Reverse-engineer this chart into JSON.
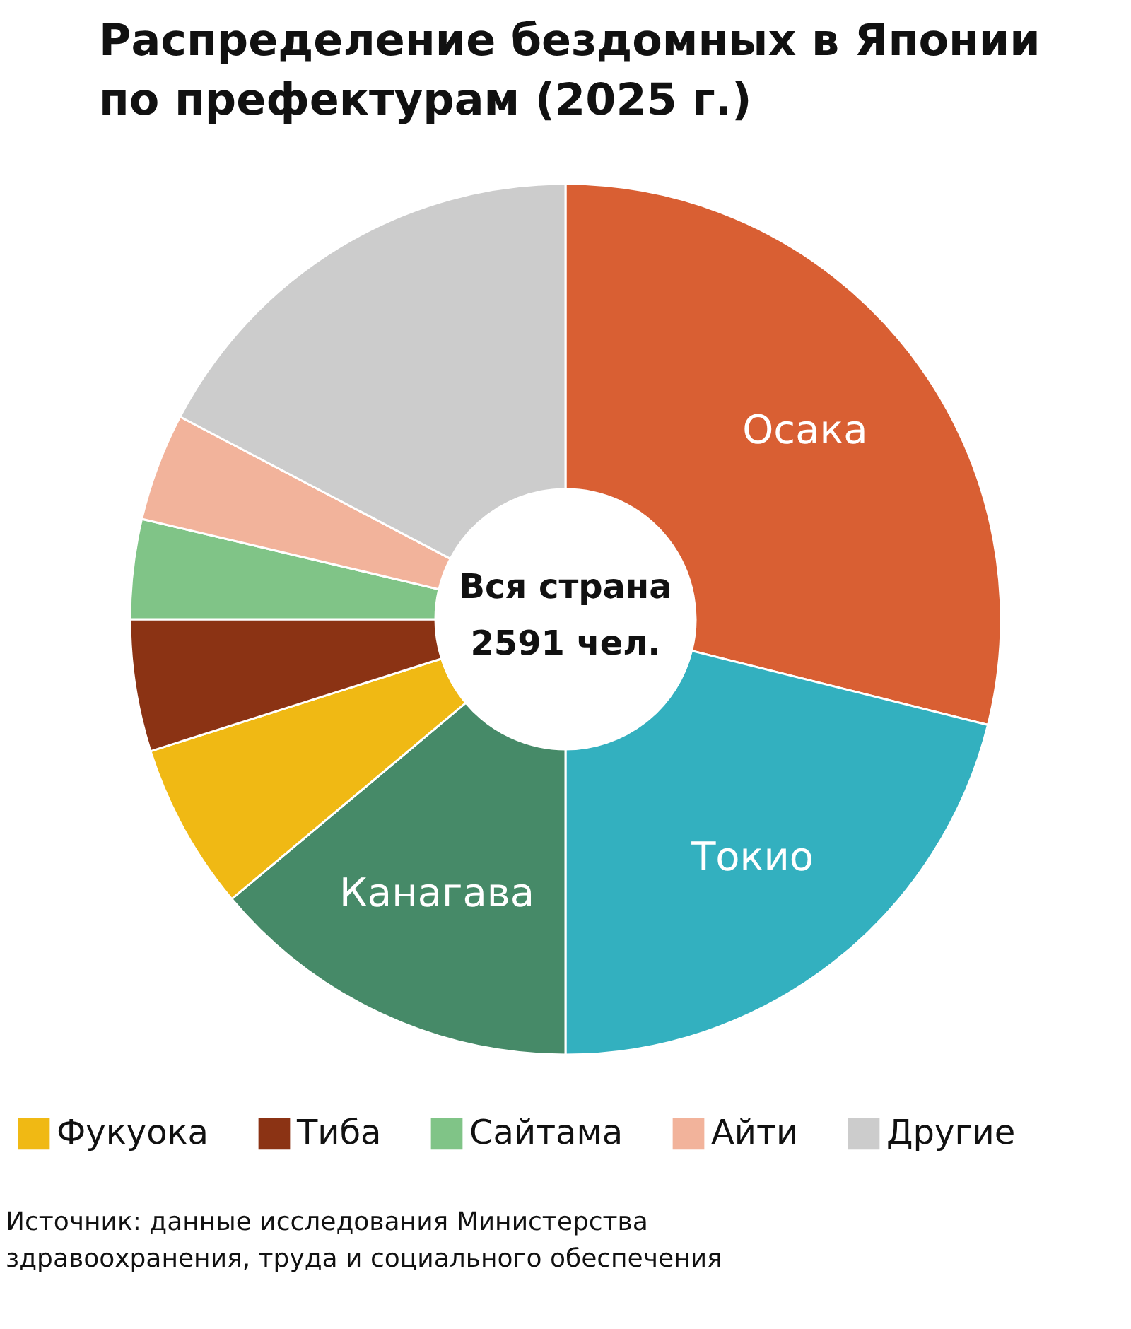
{
  "chart_data": {
    "type": "donut",
    "title": "Распределение бездомных в Японии по префектурам (2025 г.)",
    "categories": [
      "Осака",
      "Токио",
      "Канагава",
      "Фукуока",
      "Тиба",
      "Сайтама",
      "Айти",
      "Другие"
    ],
    "values": [
      28.9,
      21.1,
      13.9,
      6.2,
      4.9,
      3.7,
      4.0,
      17.3
    ],
    "colors": [
      "#d95f33",
      "#33b0bf",
      "#468a68",
      "#f0b914",
      "#8b3314",
      "#80c487",
      "#f2b39b",
      "#cccccc"
    ],
    "legend": "bottom",
    "annotations": [
      "Вся страна",
      "2591 чел.",
      "Источник: данные исследования Министерства здравоохранения, труда и социального обеспечения"
    ]
  }
}
